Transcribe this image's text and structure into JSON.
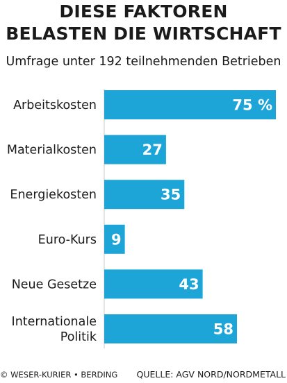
{
  "header": {
    "title_line1": "DIESE FAKTOREN",
    "title_line2": "BELASTEN DIE WIRTSCHAFT",
    "subtitle": "Umfrage unter 192 teilnehmenden Betrieben"
  },
  "chart_data": {
    "type": "bar",
    "orientation": "horizontal",
    "categories": [
      "Arbeitskosten",
      "Materialkosten",
      "Energiekosten",
      "Euro-Kurs",
      "Neue Gesetze",
      "Internationale Politik"
    ],
    "category_lines": [
      [
        "Arbeitskosten"
      ],
      [
        "Materialkosten"
      ],
      [
        "Energiekosten"
      ],
      [
        "Euro-Kurs"
      ],
      [
        "Neue Gesetze"
      ],
      [
        "Internationale",
        "Politik"
      ]
    ],
    "values": [
      75,
      27,
      35,
      9,
      43,
      58
    ],
    "value_labels": [
      "75 %",
      "27",
      "35",
      "9",
      "43",
      "58"
    ],
    "unit": "%",
    "xlim": [
      0,
      75
    ],
    "grid": false,
    "bar_color": "#1ea5d8",
    "label_color": "#ffffff"
  },
  "footer": {
    "credit": "© WESER-KURIER • BERDING",
    "source": "QUELLE: AGV NORD/NORDMETALL"
  }
}
